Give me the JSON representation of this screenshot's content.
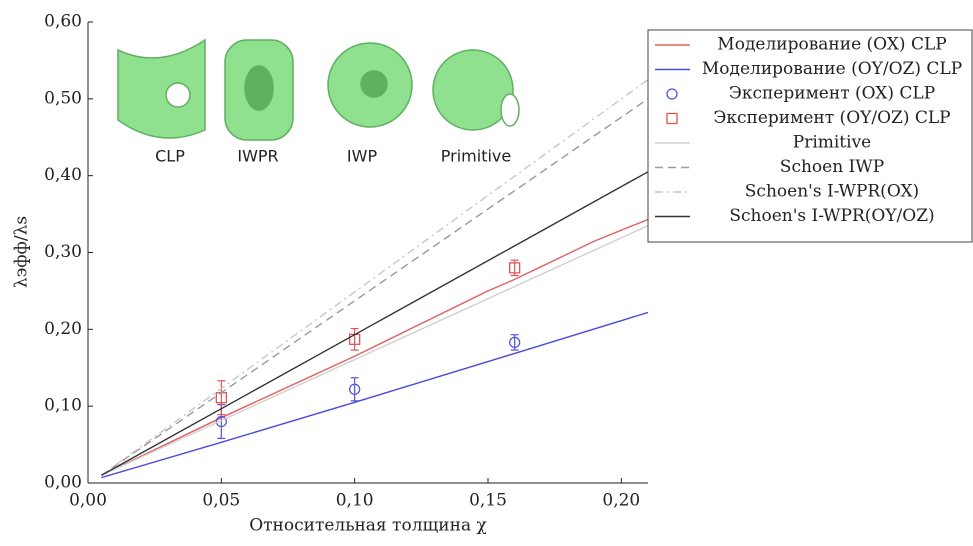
{
  "chart_data": {
    "type": "line",
    "xlabel": "Относительная толщина χ",
    "ylabel": "λэфф/λs",
    "xlim": [
      0,
      0.21
    ],
    "ylim": [
      0,
      0.6
    ],
    "xticks": [
      {
        "value": 0,
        "label": "0,00"
      },
      {
        "value": 0.05,
        "label": "0,05"
      },
      {
        "value": 0.1,
        "label": "0,10"
      },
      {
        "value": 0.15,
        "label": "0,15"
      },
      {
        "value": 0.2,
        "label": "0,20"
      }
    ],
    "yticks": [
      {
        "value": 0,
        "label": "0,00"
      },
      {
        "value": 0.1,
        "label": "0,10"
      },
      {
        "value": 0.2,
        "label": "0,20"
      },
      {
        "value": 0.3,
        "label": "0,30"
      },
      {
        "value": 0.4,
        "label": "0,40"
      },
      {
        "value": 0.5,
        "label": "0,50"
      },
      {
        "value": 0.6,
        "label": "0,60"
      }
    ],
    "inset_labels": [
      "CLP",
      "IWPR",
      "IWP",
      "Primitive"
    ],
    "legend": "outside right",
    "series": [
      {
        "name": "Моделирование (OX) CLP",
        "color": "#e06060",
        "style": "solid",
        "x": [
          0.005,
          0.05,
          0.1,
          0.15,
          0.16,
          0.19,
          0.21
        ],
        "values": [
          0.01,
          0.085,
          0.165,
          0.25,
          0.265,
          0.315,
          0.343
        ]
      },
      {
        "name": "Моделирование (OY/OZ) CLP",
        "color": "#4a4ad8",
        "style": "solid",
        "x": [
          0.005,
          0.05,
          0.1,
          0.15,
          0.21
        ],
        "values": [
          0.007,
          0.053,
          0.105,
          0.158,
          0.222
        ]
      },
      {
        "name": "Эксперимент (OX) CLP",
        "color": "#5555dd",
        "style": "circle",
        "x": [
          0.05,
          0.1,
          0.16
        ],
        "values": [
          0.08,
          0.122,
          0.183
        ],
        "errors": [
          0.022,
          0.015,
          0.01
        ]
      },
      {
        "name": "Эксперимент (OY/OZ) CLP",
        "color": "#dd5555",
        "style": "square",
        "x": [
          0.05,
          0.1,
          0.16
        ],
        "values": [
          0.111,
          0.187,
          0.28
        ],
        "errors": [
          0.022,
          0.014,
          0.01
        ]
      },
      {
        "name": "Primitive",
        "color": "#d0d0d0",
        "style": "solid",
        "x": [
          0.005,
          0.21
        ],
        "values": [
          0.01,
          0.335
        ]
      },
      {
        "name": "Schoen IWP",
        "color": "#999999",
        "style": "dashed",
        "x": [
          0.005,
          0.21
        ],
        "values": [
          0.01,
          0.5
        ]
      },
      {
        "name": "Schoen's I-WPR(OX)",
        "color": "#c8c8c8",
        "style": "dashdot",
        "x": [
          0.005,
          0.21
        ],
        "values": [
          0.01,
          0.525
        ]
      },
      {
        "name": "Schoen's I-WPR(OY/OZ)",
        "color": "#333333",
        "style": "solid",
        "x": [
          0.005,
          0.21
        ],
        "values": [
          0.01,
          0.405
        ]
      }
    ]
  }
}
